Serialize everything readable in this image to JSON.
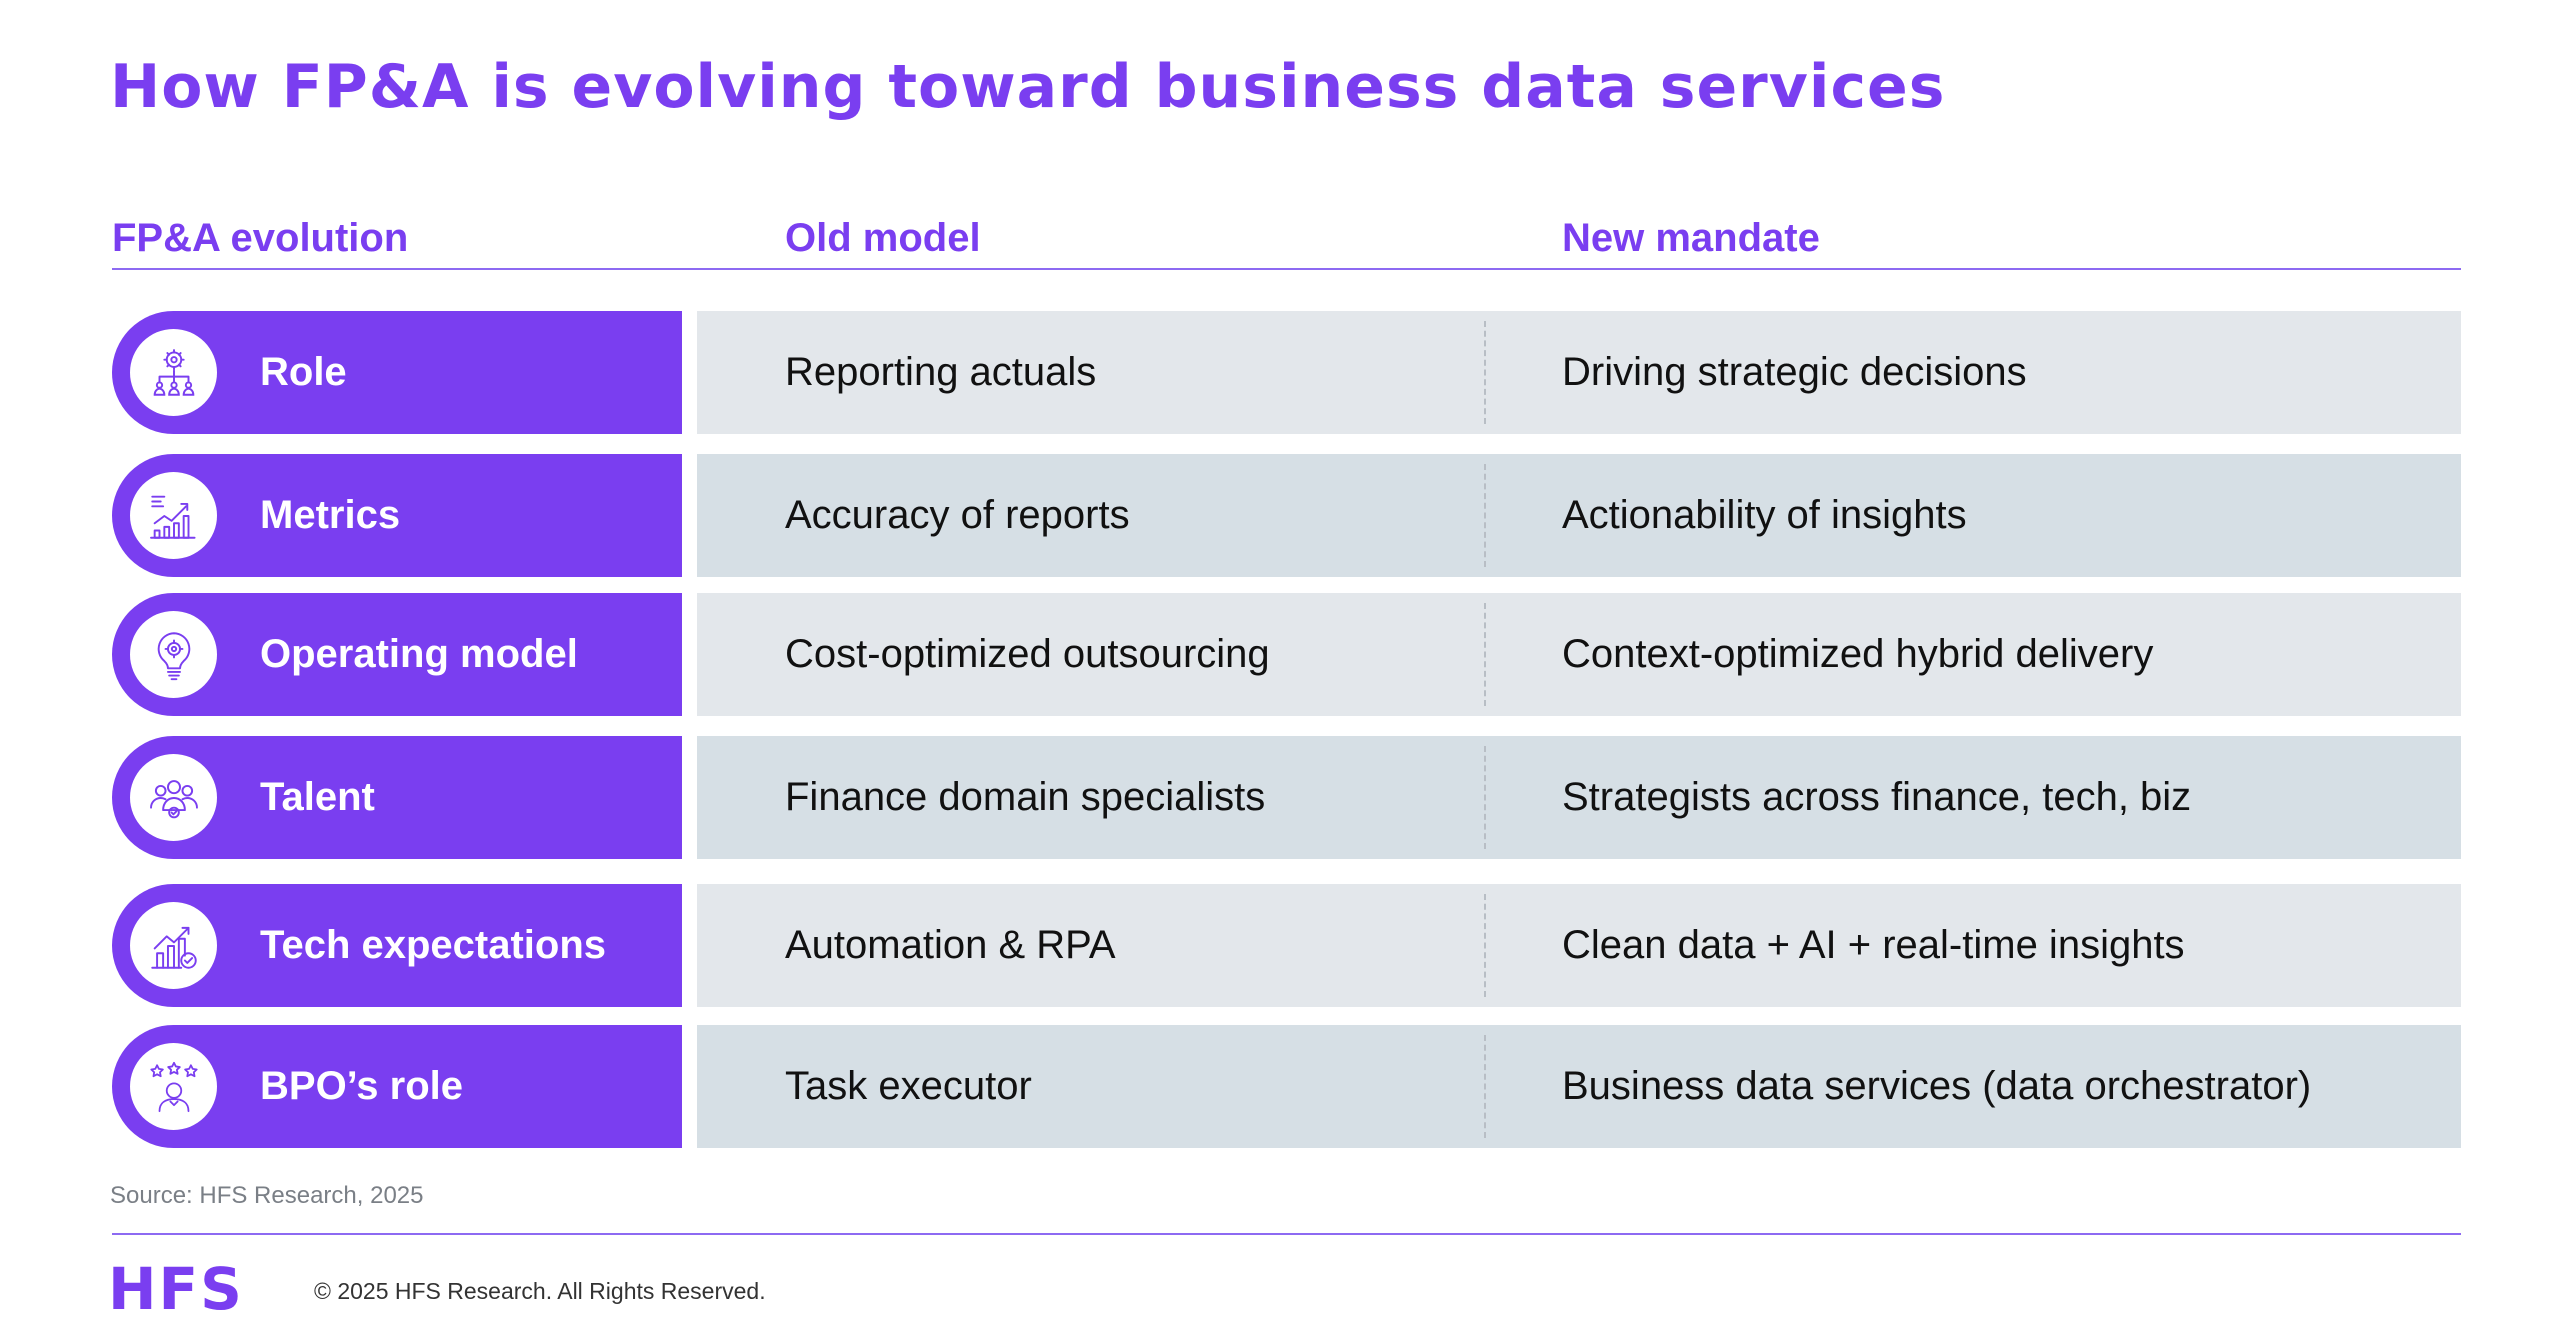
{
  "title": "How FP&A is evolving toward business data services",
  "columns": {
    "evolution": "FP&A evolution",
    "old": "Old model",
    "new": "New mandate"
  },
  "rows": [
    {
      "label": "Role",
      "old": "Reporting actuals",
      "new": "Driving strategic decisions",
      "icon": "leadership-team-icon"
    },
    {
      "label": "Metrics",
      "old": "Accuracy of reports",
      "new": "Actionability of insights",
      "icon": "growth-chart-icon"
    },
    {
      "label": "Operating model",
      "old": "Cost-optimized outsourcing",
      "new": "Context-optimized hybrid delivery",
      "icon": "lightbulb-gear-icon"
    },
    {
      "label": "Talent",
      "old": "Finance domain specialists",
      "new": "Strategists across finance, tech, biz",
      "icon": "people-group-icon"
    },
    {
      "label": "Tech expectations",
      "old": "Automation & RPA",
      "new": "Clean data + AI + real-time insights",
      "icon": "tech-growth-icon"
    },
    {
      "label": "BPO’s role",
      "old": "Task executor",
      "new": "Business data services (data orchestrator)",
      "icon": "star-rated-person-icon"
    }
  ],
  "source": "Source: HFS Research, 2025",
  "footer": {
    "logo": "HFS",
    "copyright": "© 2025 HFS Research. All Rights Reserved."
  },
  "colors": {
    "accent": "#7a3ef0",
    "row_light": "#e3e7eb",
    "row_dark": "#d6dfe5"
  }
}
